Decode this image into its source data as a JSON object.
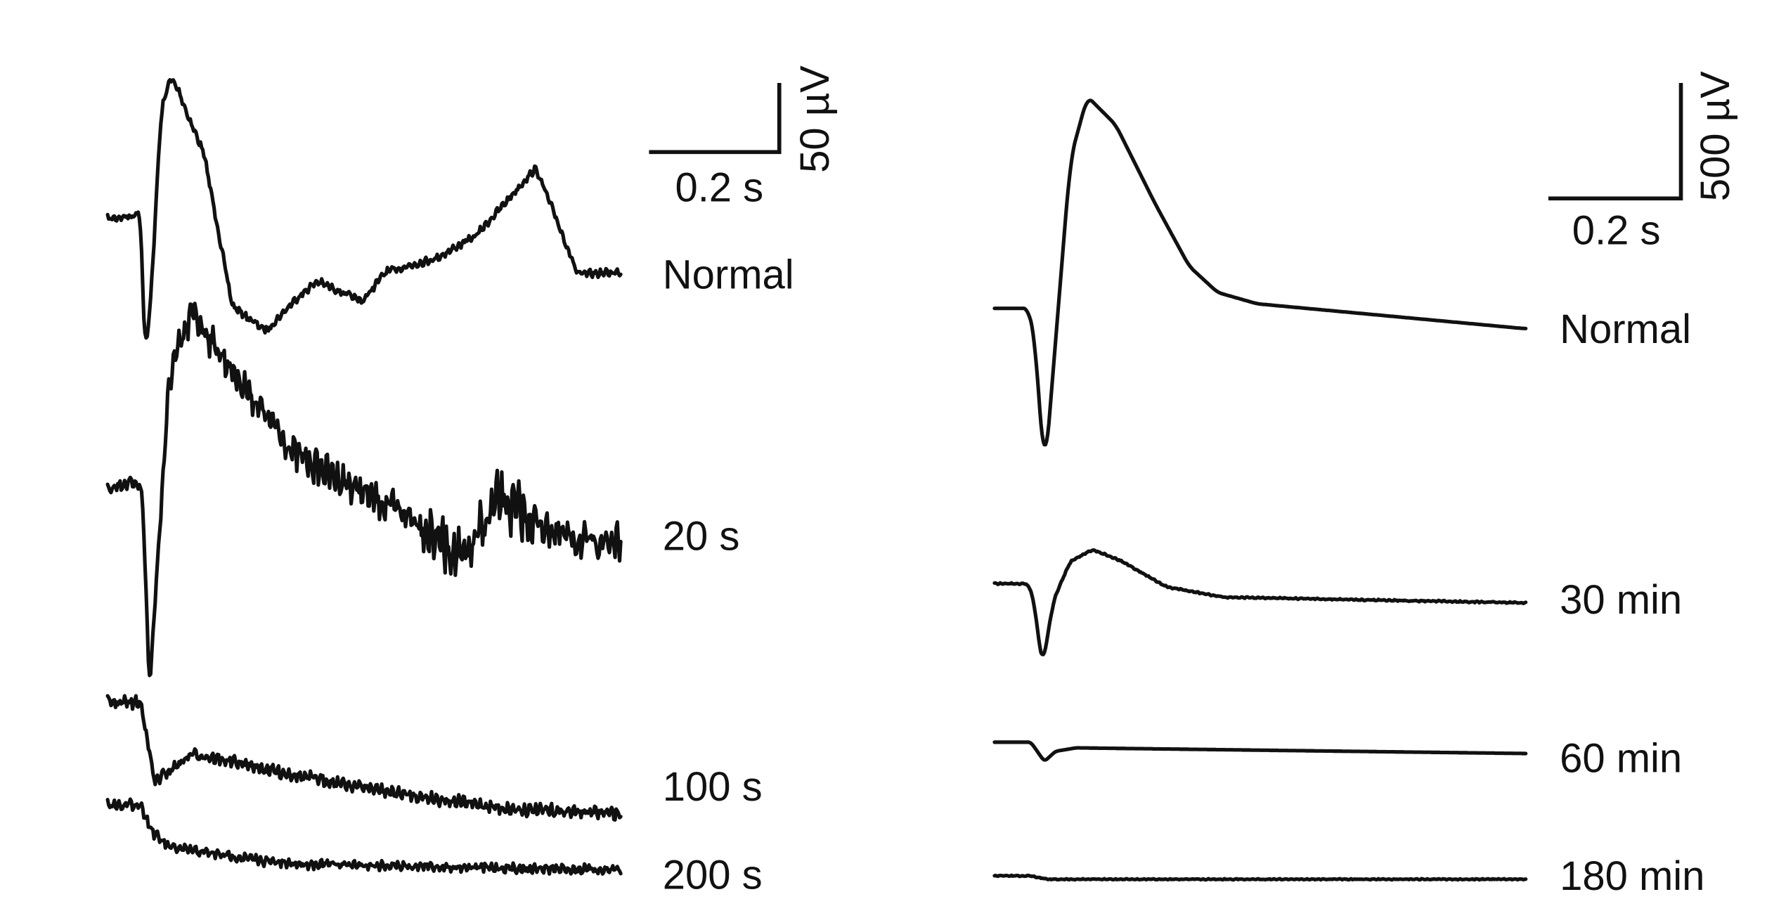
{
  "left_panel": {
    "scale_bar": {
      "time": "0.2 s",
      "amplitude": "50 µV"
    },
    "traces": [
      {
        "label": "Normal"
      },
      {
        "label": "20 s"
      },
      {
        "label": "100 s"
      },
      {
        "label": "200 s"
      }
    ]
  },
  "right_panel": {
    "scale_bar": {
      "time": "0.2 s",
      "amplitude": "500 µV"
    },
    "traces": [
      {
        "label": "Normal"
      },
      {
        "label": "30 min"
      },
      {
        "label": "60 min"
      },
      {
        "label": "180 min"
      }
    ]
  }
}
